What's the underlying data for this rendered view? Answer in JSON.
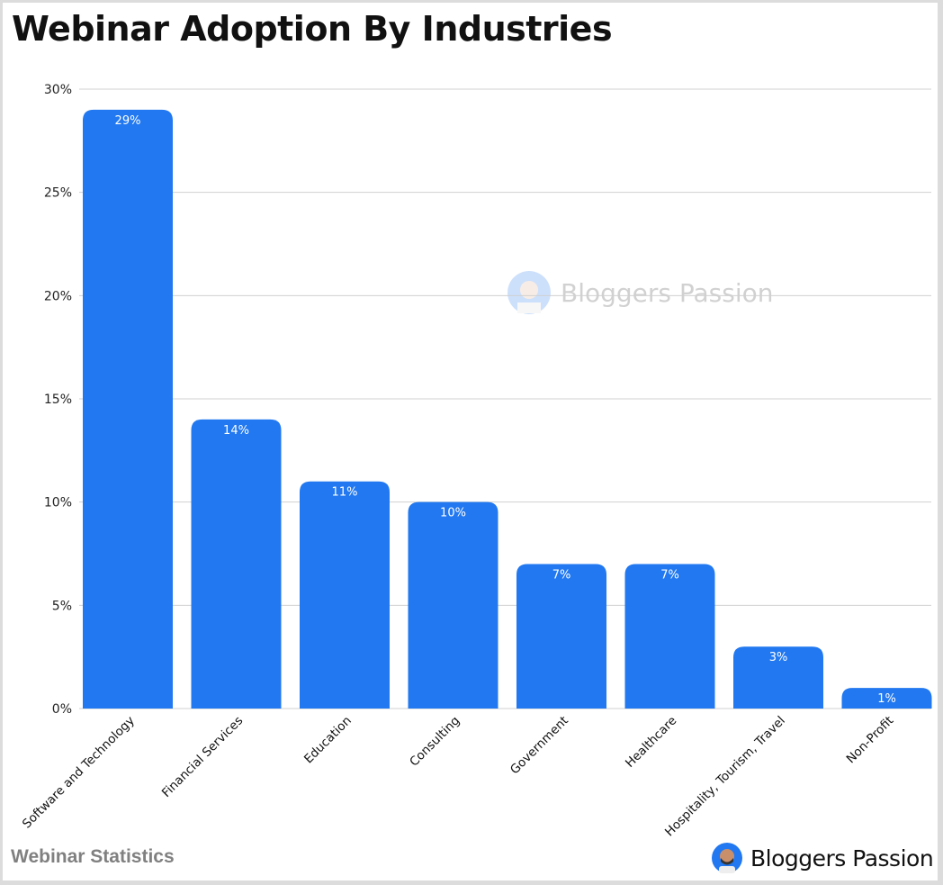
{
  "title": "Webinar Adoption By Industries",
  "footer": {
    "left": "Webinar Statistics",
    "brand": "Bloggers Passion"
  },
  "watermark": "Bloggers Passion",
  "colors": {
    "bar": "#2178f0",
    "grid": "#d0d0d0",
    "footer_text": "#808080"
  },
  "chart_data": {
    "type": "bar",
    "title": "Webinar Adoption By Industries",
    "categories": [
      "Software and Technology",
      "Financial Services",
      "Education",
      "Consulting",
      "Government",
      "Healthcare",
      "Hospitality, Tourism, Travel",
      "Non-Profit"
    ],
    "values": [
      29,
      14,
      11,
      10,
      7,
      7,
      3,
      1
    ],
    "data_labels": [
      "29%",
      "14%",
      "11%",
      "10%",
      "7%",
      "7%",
      "3%",
      "1%"
    ],
    "ylim": [
      0,
      30
    ],
    "yticks": [
      "0%",
      "5%",
      "10%",
      "15%",
      "20%",
      "25%",
      "30%"
    ],
    "ytick_values": [
      0,
      5,
      10,
      15,
      20,
      25,
      30
    ],
    "grid": true,
    "xlabel": "",
    "ylabel": ""
  }
}
